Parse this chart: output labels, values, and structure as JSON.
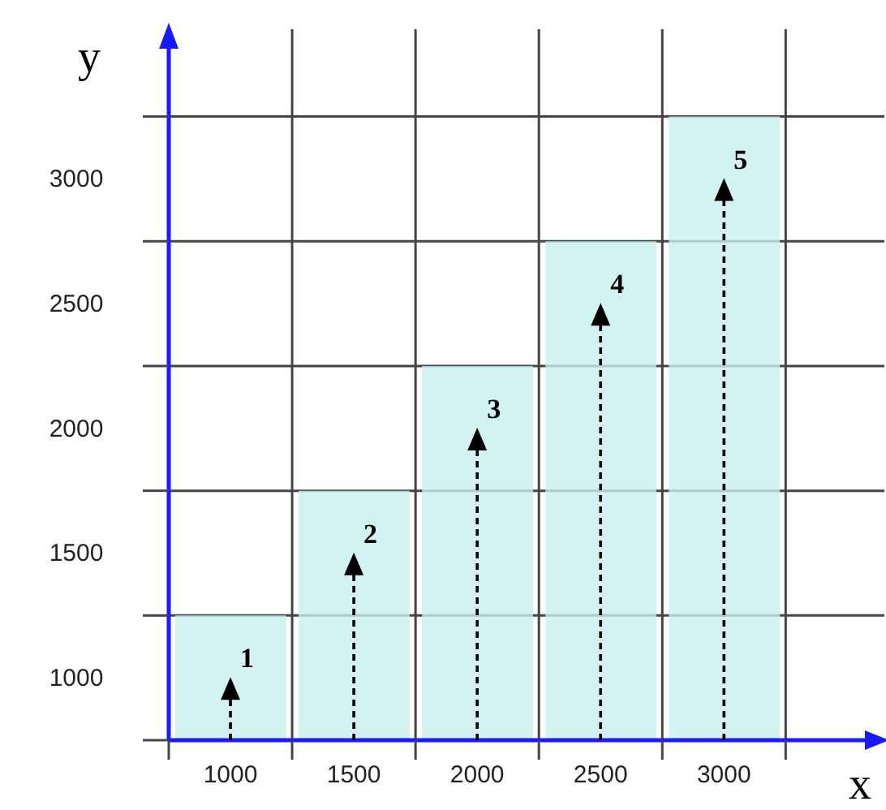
{
  "chart_data": {
    "type": "histogram",
    "bins": [
      750,
      1250,
      1750,
      2250,
      2750,
      3250
    ],
    "values": [
      1250,
      1750,
      2250,
      2750,
      3250
    ],
    "color": "#c8efef",
    "xlabel": "x",
    "ylabel": "y",
    "xlim": [
      750,
      3650
    ],
    "ylim": [
      750,
      3600
    ],
    "xticks": [
      {
        "value": 750,
        "label": null
      },
      1000,
      {
        "value": 1250,
        "label": null
      },
      1500,
      {
        "value": 1750,
        "label": null
      },
      2000,
      {
        "value": 2250,
        "label": null
      },
      2500,
      {
        "value": 2750,
        "label": null
      },
      3000,
      {
        "value": 3250,
        "label": null
      }
    ],
    "yticks": [
      {
        "value": 750,
        "label": null
      },
      1000,
      {
        "value": 1250,
        "label": null
      },
      1500,
      {
        "value": 1750,
        "label": null
      },
      2000,
      {
        "value": 2250,
        "label": null
      },
      2500,
      {
        "value": 2750,
        "label": null
      },
      3000,
      {
        "value": 3250,
        "label": null
      }
    ],
    "grid": true,
    "annotations": [
      {
        "text": "1",
        "x": 1000,
        "y": 1250
      },
      {
        "text": "2",
        "x": 1500,
        "y": 1750
      },
      {
        "text": "3",
        "x": 2000,
        "y": 2250
      },
      {
        "text": "4",
        "x": 2500,
        "y": 2750
      },
      {
        "text": "5",
        "x": 3000,
        "y": 3250
      }
    ]
  }
}
